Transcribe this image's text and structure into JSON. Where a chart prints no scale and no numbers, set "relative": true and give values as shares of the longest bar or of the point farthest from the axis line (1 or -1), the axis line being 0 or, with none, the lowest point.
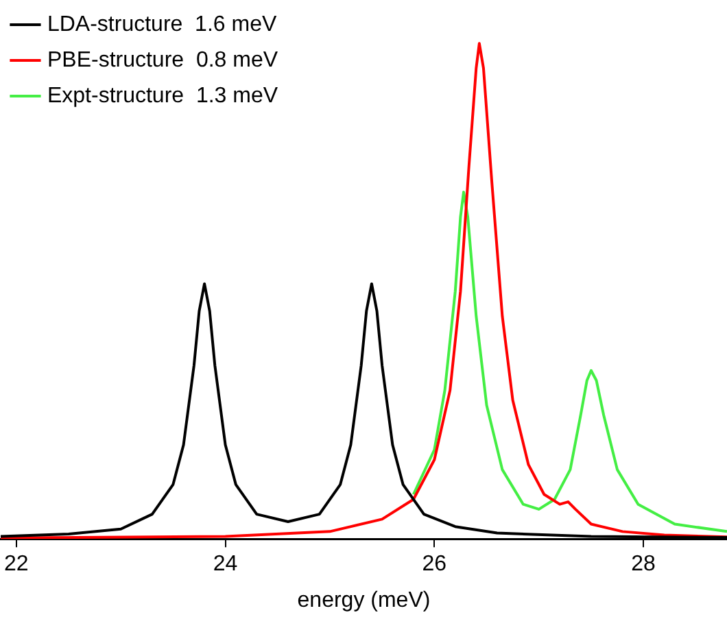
{
  "chart_data": {
    "type": "line",
    "xlabel": "energy (meV)",
    "relative": true,
    "xlim": [
      21.85,
      28.8
    ],
    "xticks": [
      22,
      24,
      26,
      28
    ],
    "legend": "top left",
    "grid": false,
    "marker": "none",
    "line_style": "solid",
    "series": [
      {
        "name": "LDA-structure  1.6 meV",
        "color": "#000000",
        "x": [
          21.85,
          22.5,
          23.0,
          23.3,
          23.5,
          23.6,
          23.7,
          23.75,
          23.8,
          23.85,
          23.9,
          24.0,
          24.1,
          24.3,
          24.6,
          24.9,
          25.1,
          25.2,
          25.3,
          25.35,
          25.4,
          25.45,
          25.5,
          25.6,
          25.7,
          25.9,
          26.2,
          26.6,
          27.5,
          28.8
        ],
        "values": [
          0.005,
          0.01,
          0.02,
          0.05,
          0.11,
          0.19,
          0.35,
          0.46,
          0.515,
          0.46,
          0.35,
          0.19,
          0.11,
          0.05,
          0.035,
          0.05,
          0.11,
          0.19,
          0.35,
          0.46,
          0.515,
          0.46,
          0.35,
          0.19,
          0.11,
          0.05,
          0.025,
          0.012,
          0.005,
          0.003
        ]
      },
      {
        "name": "PBE-structure  0.8 meV",
        "color": "#ff0000",
        "x": [
          21.85,
          24,
          25.0,
          25.5,
          25.8,
          26.0,
          26.15,
          26.25,
          26.33,
          26.4,
          26.43,
          26.47,
          26.55,
          26.65,
          26.75,
          26.9,
          27.05,
          27.2,
          27.28,
          27.35,
          27.5,
          27.8,
          28.2,
          28.8
        ],
        "values": [
          0.002,
          0.005,
          0.015,
          0.04,
          0.08,
          0.16,
          0.3,
          0.5,
          0.75,
          0.95,
          1,
          0.95,
          0.72,
          0.45,
          0.28,
          0.15,
          0.09,
          0.07,
          0.075,
          0.06,
          0.03,
          0.015,
          0.008,
          0.004
        ]
      },
      {
        "name": "Expt-structure  1.3 meV",
        "color": "#44ee44",
        "x": [
          25.8,
          26.0,
          26.1,
          26.2,
          26.25,
          26.28,
          26.32,
          26.4,
          26.5,
          26.65,
          26.85,
          27.0,
          27.15,
          27.3,
          27.4,
          27.46,
          27.5,
          27.55,
          27.62,
          27.75,
          27.95,
          28.3,
          28.8
        ],
        "values": [
          0.09,
          0.18,
          0.3,
          0.5,
          0.65,
          0.7,
          0.65,
          0.45,
          0.27,
          0.14,
          0.07,
          0.06,
          0.08,
          0.14,
          0.25,
          0.32,
          0.34,
          0.32,
          0.25,
          0.14,
          0.07,
          0.03,
          0.015
        ]
      }
    ]
  }
}
